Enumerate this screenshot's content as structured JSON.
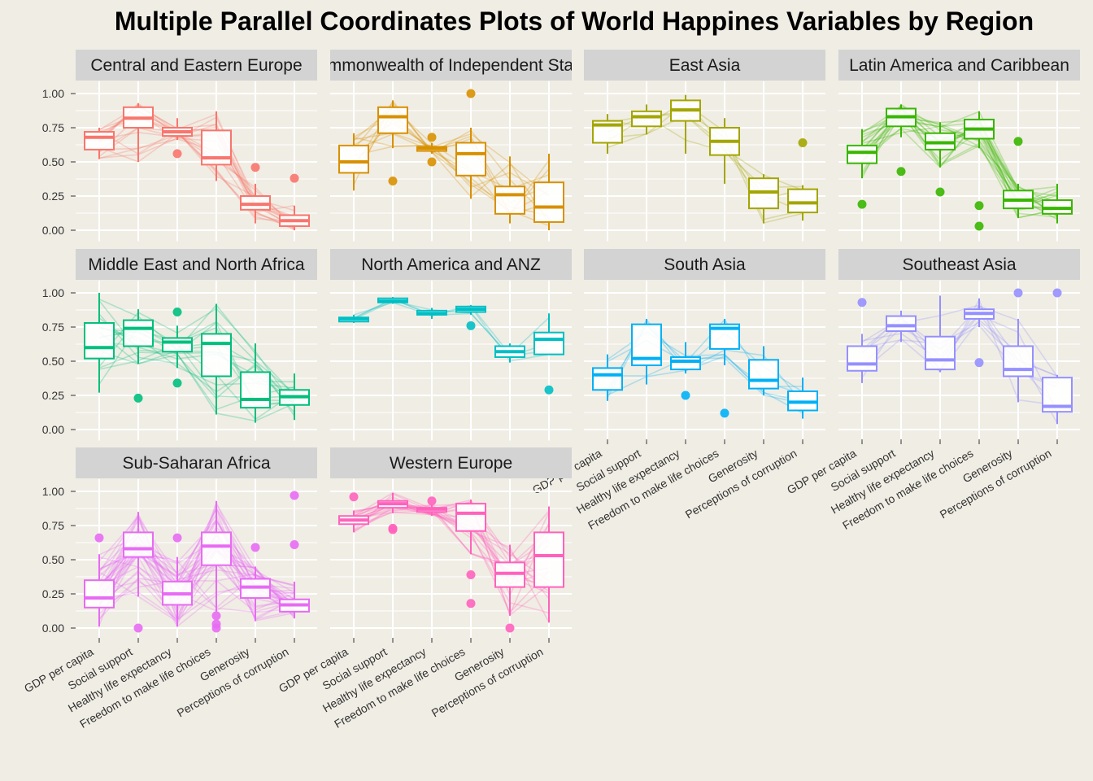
{
  "chart_data": {
    "type": "parallel-coordinates-boxplot",
    "title": "Multiple Parallel Coordinates Plots of World Happines Variables by Region",
    "variables": [
      "GDP per capita",
      "Social support",
      "Healthy life expectancy",
      "Freedom to make life choices",
      "Generosity",
      "Perceptions of corruption"
    ],
    "ylim": [
      0,
      1
    ],
    "yticks": [
      "0.00",
      "0.25",
      "0.50",
      "0.75",
      "1.00"
    ],
    "grid": true,
    "legend": "none",
    "panels": [
      {
        "region": "Central and Eastern Europe",
        "color": "#f8766d",
        "n_lines": 17,
        "boxes": [
          [
            0.52,
            0.59,
            0.68,
            0.72,
            0.75
          ],
          [
            0.5,
            0.75,
            0.82,
            0.9,
            0.93
          ],
          [
            0.66,
            0.69,
            0.72,
            0.75,
            0.82
          ],
          [
            0.36,
            0.48,
            0.53,
            0.73,
            0.87
          ],
          [
            0.05,
            0.15,
            0.19,
            0.25,
            0.34
          ],
          [
            0.0,
            0.03,
            0.07,
            0.11,
            0.18
          ]
        ],
        "outliers": [
          [
            2,
            0.56
          ],
          [
            4,
            0.46
          ],
          [
            5,
            0.38
          ]
        ]
      },
      {
        "region": "Commonwealth of Independent States",
        "color": "#d89000",
        "n_lines": 12,
        "boxes": [
          [
            0.29,
            0.42,
            0.5,
            0.62,
            0.71
          ],
          [
            0.6,
            0.71,
            0.83,
            0.9,
            0.95
          ],
          [
            0.56,
            0.58,
            0.6,
            0.61,
            0.64
          ],
          [
            0.23,
            0.4,
            0.56,
            0.64,
            0.75
          ],
          [
            0.05,
            0.12,
            0.26,
            0.32,
            0.54
          ],
          [
            0.0,
            0.06,
            0.17,
            0.35,
            0.56
          ]
        ],
        "outliers": [
          [
            1,
            0.36
          ],
          [
            2,
            0.68
          ],
          [
            2,
            0.5
          ],
          [
            3,
            1.0
          ]
        ]
      },
      {
        "region": "East Asia",
        "color": "#a3a500",
        "n_lines": 6,
        "boxes": [
          [
            0.56,
            0.64,
            0.77,
            0.8,
            0.85
          ],
          [
            0.7,
            0.76,
            0.83,
            0.87,
            0.92
          ],
          [
            0.56,
            0.8,
            0.88,
            0.95,
            0.99
          ],
          [
            0.34,
            0.55,
            0.65,
            0.75,
            0.82
          ],
          [
            0.05,
            0.16,
            0.28,
            0.38,
            0.41
          ],
          [
            0.07,
            0.13,
            0.2,
            0.3,
            0.33
          ]
        ],
        "outliers": [
          [
            5,
            0.64
          ]
        ]
      },
      {
        "region": "Latin America and Caribbean",
        "color": "#39b600",
        "n_lines": 20,
        "boxes": [
          [
            0.38,
            0.49,
            0.57,
            0.62,
            0.74
          ],
          [
            0.68,
            0.76,
            0.83,
            0.89,
            0.92
          ],
          [
            0.46,
            0.59,
            0.64,
            0.71,
            0.79
          ],
          [
            0.6,
            0.67,
            0.74,
            0.81,
            0.87
          ],
          [
            0.09,
            0.16,
            0.22,
            0.29,
            0.34
          ],
          [
            0.05,
            0.12,
            0.16,
            0.22,
            0.34
          ]
        ],
        "outliers": [
          [
            0,
            0.19
          ],
          [
            1,
            0.43
          ],
          [
            2,
            0.28
          ],
          [
            3,
            0.18
          ],
          [
            3,
            0.03
          ],
          [
            4,
            0.65
          ]
        ]
      },
      {
        "region": "Middle East and North Africa",
        "color": "#00bf7d",
        "n_lines": 17,
        "boxes": [
          [
            0.27,
            0.52,
            0.6,
            0.78,
            1.0
          ],
          [
            0.48,
            0.61,
            0.74,
            0.8,
            0.88
          ],
          [
            0.45,
            0.57,
            0.64,
            0.67,
            0.76
          ],
          [
            0.11,
            0.39,
            0.63,
            0.7,
            0.92
          ],
          [
            0.05,
            0.16,
            0.22,
            0.42,
            0.63
          ],
          [
            0.07,
            0.18,
            0.24,
            0.29,
            0.41
          ]
        ],
        "outliers": [
          [
            1,
            0.23
          ],
          [
            2,
            0.86
          ],
          [
            2,
            0.34
          ]
        ]
      },
      {
        "region": "North America and ANZ",
        "color": "#00bfc4",
        "n_lines": 4,
        "boxes": [
          [
            0.78,
            0.79,
            0.81,
            0.82,
            0.84
          ],
          [
            0.92,
            0.93,
            0.94,
            0.96,
            0.97
          ],
          [
            0.81,
            0.84,
            0.85,
            0.87,
            0.89
          ],
          [
            0.84,
            0.86,
            0.88,
            0.9,
            0.91
          ],
          [
            0.49,
            0.53,
            0.57,
            0.61,
            0.63
          ],
          [
            0.55,
            0.55,
            0.66,
            0.71,
            0.85
          ]
        ],
        "outliers": [
          [
            3,
            0.76
          ],
          [
            5,
            0.29
          ]
        ]
      },
      {
        "region": "South Asia",
        "color": "#00b0f6",
        "n_lines": 7,
        "boxes": [
          [
            0.21,
            0.29,
            0.4,
            0.45,
            0.55
          ],
          [
            0.33,
            0.47,
            0.52,
            0.77,
            0.81
          ],
          [
            0.41,
            0.44,
            0.5,
            0.53,
            0.64
          ],
          [
            0.47,
            0.59,
            0.74,
            0.77,
            0.81
          ],
          [
            0.25,
            0.3,
            0.36,
            0.51,
            0.61
          ],
          [
            0.08,
            0.14,
            0.2,
            0.28,
            0.38
          ]
        ],
        "outliers": [
          [
            2,
            0.25
          ],
          [
            3,
            0.12
          ]
        ]
      },
      {
        "region": "Southeast Asia",
        "color": "#9590ff",
        "n_lines": 9,
        "boxes": [
          [
            0.34,
            0.43,
            0.48,
            0.61,
            0.7
          ],
          [
            0.64,
            0.72,
            0.76,
            0.83,
            0.87
          ],
          [
            0.42,
            0.44,
            0.51,
            0.68,
            0.98
          ],
          [
            0.75,
            0.81,
            0.85,
            0.88,
            0.96
          ],
          [
            0.2,
            0.39,
            0.44,
            0.61,
            0.81
          ],
          [
            0.04,
            0.13,
            0.17,
            0.38,
            0.4
          ]
        ],
        "outliers": [
          [
            0,
            0.93
          ],
          [
            3,
            0.49
          ],
          [
            4,
            1.0
          ],
          [
            5,
            1.0
          ]
        ]
      },
      {
        "region": "Sub-Saharan Africa",
        "color": "#e76bf3",
        "n_lines": 38,
        "boxes": [
          [
            0.01,
            0.15,
            0.22,
            0.35,
            0.54
          ],
          [
            0.23,
            0.52,
            0.58,
            0.7,
            0.85
          ],
          [
            0.01,
            0.17,
            0.25,
            0.34,
            0.52
          ],
          [
            0.12,
            0.46,
            0.6,
            0.7,
            0.93
          ],
          [
            0.05,
            0.22,
            0.3,
            0.36,
            0.45
          ],
          [
            0.07,
            0.12,
            0.17,
            0.21,
            0.34
          ]
        ],
        "outliers": [
          [
            0,
            0.66
          ],
          [
            1,
            0.0
          ],
          [
            2,
            0.66
          ],
          [
            3,
            0.09
          ],
          [
            3,
            0.03
          ],
          [
            3,
            0.0
          ],
          [
            4,
            0.59
          ],
          [
            5,
            0.97
          ],
          [
            5,
            0.61
          ]
        ]
      },
      {
        "region": "Western Europe",
        "color": "#ff62bc",
        "n_lines": 21,
        "boxes": [
          [
            0.7,
            0.76,
            0.79,
            0.82,
            0.86
          ],
          [
            0.84,
            0.88,
            0.91,
            0.93,
            0.99
          ],
          [
            0.82,
            0.85,
            0.87,
            0.88,
            0.9
          ],
          [
            0.54,
            0.71,
            0.84,
            0.91,
            0.94
          ],
          [
            0.09,
            0.3,
            0.4,
            0.48,
            0.61
          ],
          [
            0.04,
            0.3,
            0.53,
            0.7,
            0.89
          ]
        ],
        "outliers": [
          [
            0,
            0.96
          ],
          [
            1,
            0.73
          ],
          [
            1,
            0.72
          ],
          [
            2,
            0.93
          ],
          [
            3,
            0.39
          ],
          [
            3,
            0.18
          ],
          [
            4,
            0.0
          ]
        ]
      }
    ]
  }
}
